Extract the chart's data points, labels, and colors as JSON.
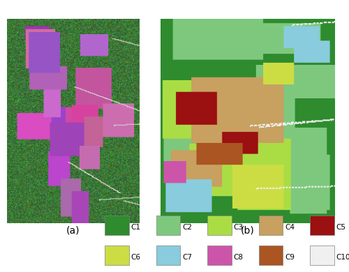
{
  "title_a": "(a)",
  "title_b": "(b)",
  "legend_items": [
    {
      "label": "C1",
      "color": "#2e8b2e"
    },
    {
      "label": "C2",
      "color": "#7ec87e"
    },
    {
      "label": "C3",
      "color": "#aadd44"
    },
    {
      "label": "C4",
      "color": "#c8a060"
    },
    {
      "label": "C5",
      "color": "#9b1010"
    },
    {
      "label": "C6",
      "color": "#ccdd44"
    },
    {
      "label": "C7",
      "color": "#88ccdd"
    },
    {
      "label": "C8",
      "color": "#cc55aa"
    },
    {
      "label": "C9",
      "color": "#aa5522"
    },
    {
      "label": "C10",
      "color": "#f0f0f0"
    }
  ],
  "legend_ncol": 5,
  "bg_color": "#ffffff",
  "fig_width": 5.0,
  "fig_height": 3.9
}
